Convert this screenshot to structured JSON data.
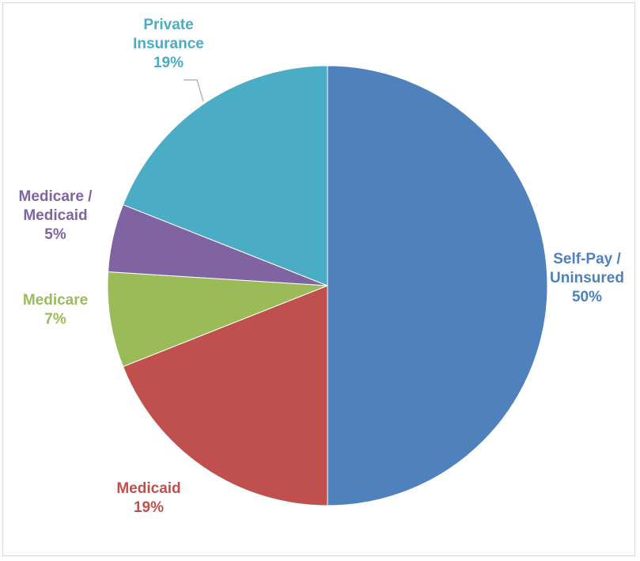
{
  "chart_data": {
    "type": "pie",
    "title": "",
    "slices": [
      {
        "lines": [
          "Self-Pay /",
          "Uninsured"
        ],
        "value": 50,
        "pct": "50%",
        "color": "#4f81bd"
      },
      {
        "lines": [
          "Medicaid"
        ],
        "value": 19,
        "pct": "19%",
        "color": "#c0504d"
      },
      {
        "lines": [
          "Medicare"
        ],
        "value": 7,
        "pct": "7%",
        "color": "#9bbb59"
      },
      {
        "lines": [
          "Medicare /",
          "Medicaid"
        ],
        "value": 5,
        "pct": "5%",
        "color": "#8064a2"
      },
      {
        "lines": [
          "Private",
          "Insurance"
        ],
        "value": 19,
        "pct": "19%",
        "color": "#4bacc6"
      }
    ],
    "start_angle": "12 o'clock",
    "direction": "clockwise",
    "legend": "none"
  }
}
